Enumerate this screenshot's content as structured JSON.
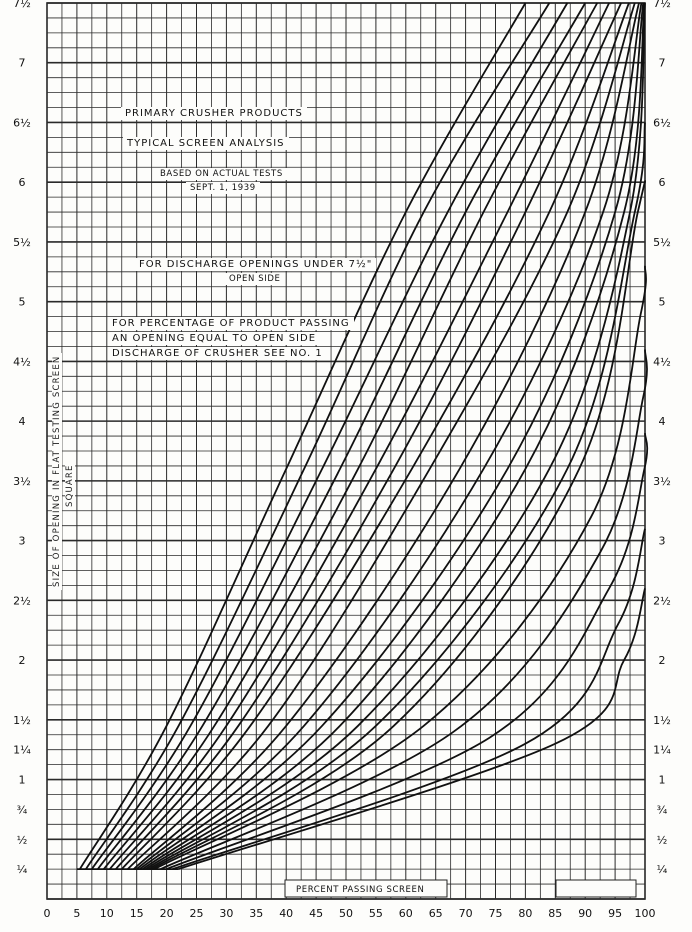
{
  "chart_data": {
    "type": "line",
    "title": "PRIMARY CRUSHER PRODUCTS",
    "subtitle": "TYPICAL SCREEN ANALYSIS",
    "notes": [
      "BASED ON ACTUAL TESTS",
      "SEPT. 1, 1939",
      "FOR DISCHARGE OPENINGS UNDER 7½\"",
      "OPEN SIDE",
      "FOR PERCENTAGE OF PRODUCT PASSING",
      "AN OPENING EQUAL TO OPEN SIDE",
      "DISCHARGE OF CRUSHER SEE NO. 1"
    ],
    "xlabel": "PERCENT PASSING SCREEN",
    "ylabel": "SIZE OF OPENING IN FLAT TESTING SCREEN",
    "ylabel2": "SQUARE",
    "xlim": [
      0,
      100
    ],
    "ylim": [
      0,
      7.5
    ],
    "grid": true,
    "x_ticks": [
      0,
      5,
      10,
      15,
      20,
      25,
      30,
      35,
      40,
      45,
      50,
      55,
      60,
      65,
      70,
      75,
      80,
      85,
      90,
      95,
      100
    ],
    "x_tick_labels": [
      "0",
      "5",
      "10",
      "15",
      "20",
      "25",
      "30",
      "35",
      "40",
      "45",
      "50",
      "55",
      "60",
      "65",
      "70",
      "75",
      "80",
      "85",
      "90",
      "95",
      "100"
    ],
    "y_ticks": [
      0.25,
      0.5,
      0.75,
      1,
      1.25,
      1.5,
      2,
      2.5,
      3,
      3.5,
      4,
      4.5,
      5,
      5.5,
      6,
      6.5,
      7,
      7.5
    ],
    "y_tick_labels": [
      "¼",
      "½",
      "¾",
      "1",
      "1¼",
      "1½",
      "2",
      "2½",
      "3",
      "3½",
      "4",
      "4½",
      "5",
      "5½",
      "6",
      "6½",
      "7",
      "7½"
    ],
    "series": [
      {
        "x": [
          5.5,
          20,
          40,
          60,
          80
        ],
        "y": [
          0.25,
          1.45,
          3.6,
          5.75,
          7.5
        ]
      },
      {
        "x": [
          6.5,
          22,
          43,
          63,
          84
        ],
        "y": [
          0.25,
          1.45,
          3.6,
          5.75,
          7.5
        ]
      },
      {
        "x": [
          7.5,
          24,
          46,
          67,
          87
        ],
        "y": [
          0.25,
          1.45,
          3.6,
          5.75,
          7.5
        ]
      },
      {
        "x": [
          8.5,
          26,
          49,
          70,
          90
        ],
        "y": [
          0.25,
          1.45,
          3.6,
          5.75,
          7.5
        ]
      },
      {
        "x": [
          9.5,
          28,
          52,
          73,
          92
        ],
        "y": [
          0.25,
          1.45,
          3.6,
          5.75,
          7.5
        ]
      },
      {
        "x": [
          10.5,
          30,
          55,
          77,
          94
        ],
        "y": [
          0.25,
          1.45,
          3.6,
          5.75,
          7.5
        ]
      },
      {
        "x": [
          11.5,
          32,
          58,
          80,
          96
        ],
        "y": [
          0.25,
          1.45,
          3.6,
          5.75,
          7.5
        ]
      },
      {
        "x": [
          12.5,
          34,
          61,
          84,
          97.3
        ],
        "y": [
          0.25,
          1.45,
          3.6,
          5.75,
          7.5
        ]
      },
      {
        "x": [
          13.5,
          37,
          64,
          87,
          98.3
        ],
        "y": [
          0.25,
          1.45,
          3.6,
          5.75,
          7.5
        ]
      },
      {
        "x": [
          14.5,
          40,
          69,
          90,
          99
        ],
        "y": [
          0.25,
          1.45,
          3.6,
          5.75,
          7.5
        ]
      },
      {
        "x": [
          15,
          43,
          73,
          93,
          99.4
        ],
        "y": [
          0.25,
          1.45,
          3.6,
          5.75,
          7.5
        ]
      },
      {
        "x": [
          15.5,
          46,
          77,
          95,
          99.7
        ],
        "y": [
          0.25,
          1.45,
          3.6,
          5.75,
          7.5
        ]
      },
      {
        "x": [
          16,
          49,
          80,
          96.5,
          99.9
        ],
        "y": [
          0.25,
          1.45,
          3.6,
          5.75,
          7.5
        ]
      },
      {
        "x": [
          16.5,
          52,
          84,
          97.5,
          100
        ],
        "y": [
          0.25,
          1.45,
          3.6,
          5.75,
          7.5
        ]
      },
      {
        "x": [
          17,
          55,
          87,
          98.3,
          100
        ],
        "y": [
          0.25,
          1.45,
          3.6,
          5.75,
          6.5
        ]
      },
      {
        "x": [
          17.5,
          58,
          89,
          98.8,
          100
        ],
        "y": [
          0.25,
          1.45,
          3.6,
          5.75,
          6.0
        ]
      },
      {
        "x": [
          18,
          63,
          91,
          99.3,
          100
        ],
        "y": [
          0.25,
          1.45,
          3.2,
          4.9,
          5.3
        ]
      },
      {
        "x": [
          19,
          68,
          92.5,
          99.7,
          100
        ],
        "y": [
          0.25,
          1.4,
          2.9,
          4.2,
          4.6
        ]
      },
      {
        "x": [
          20,
          74,
          94,
          99.9,
          100
        ],
        "y": [
          0.25,
          1.35,
          2.6,
          3.6,
          3.9
        ]
      },
      {
        "x": [
          21,
          80,
          95.5,
          100
        ],
        "y": [
          0.25,
          1.3,
          2.3,
          3.1
        ]
      },
      {
        "x": [
          22,
          85,
          96.5,
          100
        ],
        "y": [
          0.25,
          1.3,
          2.0,
          2.6
        ]
      }
    ]
  }
}
